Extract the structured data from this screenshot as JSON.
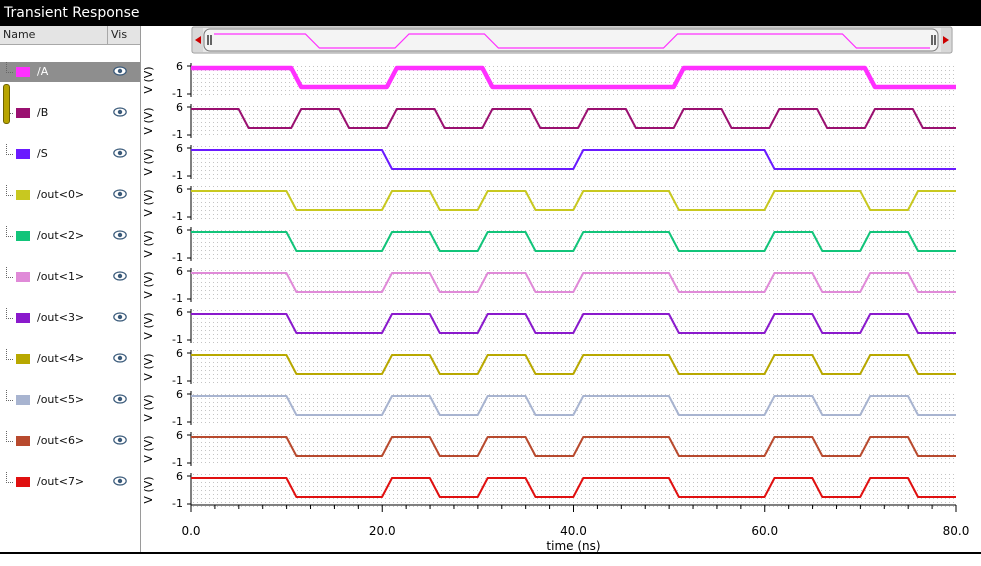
{
  "window": {
    "title": "Transient Response"
  },
  "list_header": {
    "name": "Name",
    "vis": "Vis"
  },
  "signals": [
    {
      "name": "/A",
      "color": "#ff30ff",
      "selected": true,
      "trace_width": 4.5,
      "low": [
        [
          11,
          21
        ],
        [
          31,
          51
        ],
        [
          71,
          80
        ]
      ]
    },
    {
      "name": "/B",
      "color": "#9a1070",
      "selected": false,
      "trace_width": 2,
      "low": [
        [
          5.5,
          11
        ],
        [
          16,
          21
        ],
        [
          26,
          31
        ],
        [
          36,
          41
        ],
        [
          46,
          51
        ],
        [
          56,
          61
        ],
        [
          66,
          71
        ],
        [
          76,
          80
        ]
      ]
    },
    {
      "name": "/S",
      "color": "#6a1aff",
      "selected": false,
      "trace_width": 2,
      "low": [
        [
          20.5,
          40.5
        ],
        [
          60.5,
          80
        ]
      ]
    },
    {
      "name": "/out<0>",
      "color": "#c8c820",
      "selected": false,
      "trace_width": 2,
      "low": [
        [
          10.5,
          20.5
        ],
        [
          25.5,
          30.5
        ],
        [
          35.5,
          40.5
        ],
        [
          50.5,
          60.5
        ],
        [
          70.5,
          75.5
        ]
      ]
    },
    {
      "name": "/out<2>",
      "color": "#12c47a",
      "selected": false,
      "trace_width": 2,
      "low": [
        [
          10.5,
          20.5
        ],
        [
          25.5,
          30.5
        ],
        [
          35.5,
          40.5
        ],
        [
          50.5,
          60.5
        ],
        [
          65.5,
          70.5
        ],
        [
          75.5,
          80
        ]
      ]
    },
    {
      "name": "/out<1>",
      "color": "#e08ad8",
      "selected": false,
      "trace_width": 2,
      "low": [
        [
          10.5,
          20.5
        ],
        [
          25.5,
          30.5
        ],
        [
          35.5,
          40.5
        ],
        [
          50.5,
          60.5
        ],
        [
          65.5,
          70.5
        ],
        [
          75.5,
          80
        ]
      ]
    },
    {
      "name": "/out<3>",
      "color": "#8a1acc",
      "selected": false,
      "trace_width": 2,
      "low": [
        [
          10.5,
          20.5
        ],
        [
          25.5,
          30.5
        ],
        [
          35.5,
          40.5
        ],
        [
          50.5,
          60.5
        ],
        [
          65.5,
          70.5
        ],
        [
          75.5,
          80
        ]
      ]
    },
    {
      "name": "/out<4>",
      "color": "#b8a800",
      "selected": false,
      "trace_width": 2,
      "low": [
        [
          10.5,
          20.5
        ],
        [
          25.5,
          30.5
        ],
        [
          35.5,
          40.5
        ],
        [
          50.5,
          60.5
        ],
        [
          65.5,
          70.5
        ],
        [
          75.5,
          80
        ]
      ]
    },
    {
      "name": "/out<5>",
      "color": "#a8b4d0",
      "selected": false,
      "trace_width": 2,
      "low": [
        [
          10.5,
          20.5
        ],
        [
          25.5,
          30.5
        ],
        [
          35.5,
          40.5
        ],
        [
          50.5,
          60.5
        ],
        [
          65.5,
          70.5
        ],
        [
          75.5,
          80
        ]
      ]
    },
    {
      "name": "/out<6>",
      "color": "#b84a2e",
      "selected": false,
      "trace_width": 2,
      "low": [
        [
          10.5,
          20.5
        ],
        [
          25.5,
          30.5
        ],
        [
          35.5,
          40.5
        ],
        [
          50.5,
          60.5
        ],
        [
          65.5,
          70.5
        ],
        [
          75.5,
          80
        ]
      ]
    },
    {
      "name": "/out<7>",
      "color": "#e01010",
      "selected": false,
      "trace_width": 2,
      "low": [
        [
          10.5,
          20.5
        ],
        [
          25.5,
          30.5
        ],
        [
          35.5,
          40.5
        ],
        [
          50.5,
          60.5
        ],
        [
          65.5,
          70.5
        ],
        [
          75.5,
          80
        ]
      ]
    }
  ],
  "plot": {
    "y_axis_label": "V (V)",
    "y_tick_top": "6",
    "y_tick_bottom": "-1",
    "x_axis_label": "time (ns)",
    "x_range": [
      0,
      80
    ],
    "x_ticks": [
      "0.0",
      "20.0",
      "40.0",
      "60.0",
      "80.0"
    ],
    "overview_trace_color": "#ff30ff",
    "grid": true
  },
  "icons": {
    "visibility": "eye-icon",
    "scroll_left": "arrow-left-icon",
    "scroll_right": "arrow-right-icon"
  }
}
